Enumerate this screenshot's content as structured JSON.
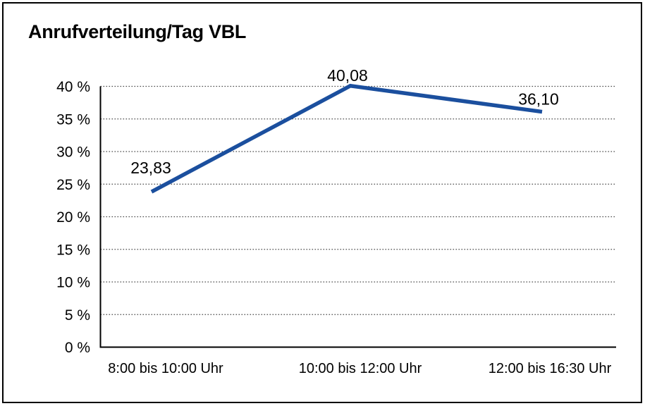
{
  "header": {
    "title": "Anrufverteilung/Tag VBL"
  },
  "chart_data": {
    "type": "line",
    "title": "Anrufverteilung/Tag VBL",
    "categories": [
      "8:00 bis 10:00 Uhr",
      "10:00 bis 12:00 Uhr",
      "12:00 bis 16:30 Uhr"
    ],
    "values": [
      23.83,
      40.08,
      36.1
    ],
    "point_labels": [
      "23,83",
      "40,08",
      "36,10"
    ],
    "y_tick_labels": [
      "0 %",
      "5 %",
      "10 %",
      "15 %",
      "20 %",
      "25 %",
      "30 %",
      "35 %",
      "40 %"
    ],
    "ylim": [
      0,
      40
    ],
    "ytick_step": 5,
    "xlabel": "",
    "ylabel": "",
    "grid": "horizontal-dotted",
    "legend": "none",
    "colors": {
      "line": "#1b4f9e",
      "grid": "#4a4a4a",
      "axis": "#000000",
      "text": "#000000",
      "background": "#ffffff",
      "border": "#000000"
    }
  }
}
